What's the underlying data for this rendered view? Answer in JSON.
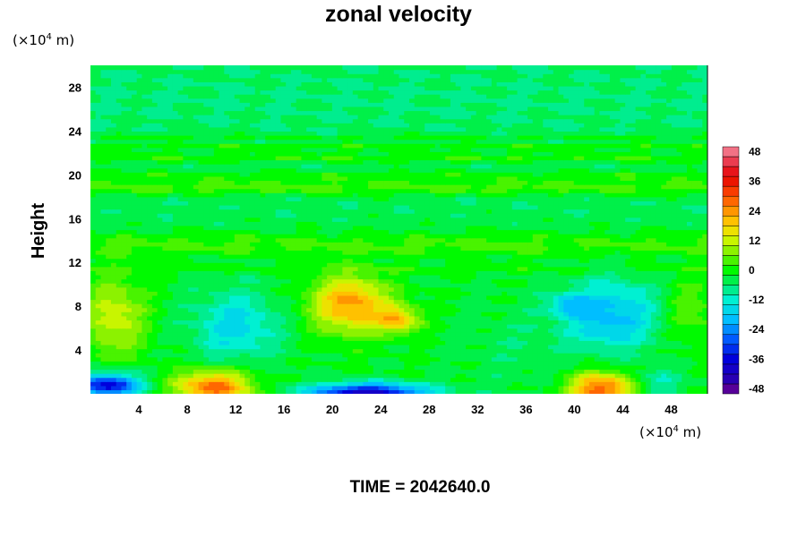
{
  "chart_data": {
    "type": "heatmap",
    "title": "zonal velocity",
    "x_unit_prefix": "(×10",
    "x_unit_exp": "4",
    "x_unit_suffix": " m)",
    "y_unit_prefix": "(×10",
    "y_unit_exp": "4",
    "y_unit_suffix": " m)",
    "ylabel": "Height",
    "xlim": [
      0,
      51
    ],
    "ylim": [
      0,
      30
    ],
    "xticks": [
      4,
      8,
      12,
      16,
      20,
      24,
      28,
      32,
      36,
      40,
      44,
      48
    ],
    "yticks": [
      4,
      8,
      12,
      16,
      20,
      24,
      28
    ],
    "colorbar": {
      "range": [
        -50,
        50
      ],
      "ticks": [
        48,
        36,
        24,
        12,
        0,
        -12,
        -24,
        -36,
        -48
      ],
      "level_step": 4
    },
    "background_value": -5,
    "features": [
      {
        "x": 21.5,
        "y": 8.2,
        "value": 26,
        "sx": 3.2,
        "sy": 2.6
      },
      {
        "x": 25.5,
        "y": 6.8,
        "value": 20,
        "sx": 1.8,
        "sy": 1.2
      },
      {
        "x": 10.2,
        "y": 0.6,
        "value": 30,
        "sx": 3.2,
        "sy": 1.6
      },
      {
        "x": 42.2,
        "y": 0.5,
        "value": 32,
        "sx": 2.6,
        "sy": 1.5
      },
      {
        "x": 2.0,
        "y": 7.0,
        "value": 15,
        "sx": 2.6,
        "sy": 3.6
      },
      {
        "x": 49.5,
        "y": 7.5,
        "value": 8,
        "sx": 2.0,
        "sy": 3.0
      },
      {
        "x": 12.0,
        "y": 6.2,
        "value": -14,
        "sx": 3.6,
        "sy": 3.2
      },
      {
        "x": 43.0,
        "y": 7.2,
        "value": -18,
        "sx": 4.0,
        "sy": 3.2
      },
      {
        "x": 39.5,
        "y": 8.2,
        "value": -12,
        "sx": 1.6,
        "sy": 1.0
      },
      {
        "x": 1.5,
        "y": 0.8,
        "value": -36,
        "sx": 2.6,
        "sy": 1.1
      },
      {
        "x": 23.0,
        "y": 0.1,
        "value": -38,
        "sx": 5.0,
        "sy": 0.9
      },
      {
        "x": 35.0,
        "y": 4.0,
        "value": -3,
        "sx": 4.0,
        "sy": 4.0
      },
      {
        "x": 47.0,
        "y": 1.0,
        "value": -8,
        "sx": 2.0,
        "sy": 1.5
      }
    ],
    "bands": [
      {
        "y": 11.4,
        "value": 6,
        "width": 0.55
      },
      {
        "y": 13.6,
        "value": 8,
        "width": 1.3
      },
      {
        "y": 16.2,
        "value": -4,
        "width": 1.2
      },
      {
        "y": 18.9,
        "value": 9,
        "width": 0.7
      },
      {
        "y": 20.0,
        "value": 3,
        "width": 0.5
      },
      {
        "y": 21.6,
        "value": 6,
        "width": 0.45
      },
      {
        "y": 22.6,
        "value": 5,
        "width": 0.35
      },
      {
        "y": 23.5,
        "value": 2,
        "width": 0.3
      },
      {
        "y": 27.0,
        "value": -7,
        "width": 3.5
      }
    ],
    "annotation": "TIME = 2042640.0"
  }
}
